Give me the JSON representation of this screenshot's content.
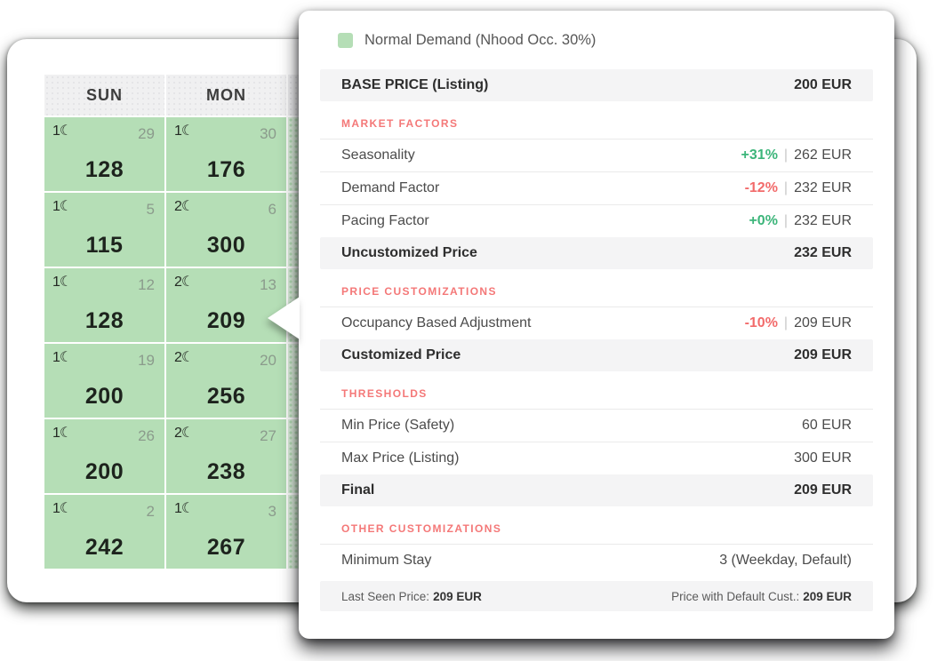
{
  "calendar": {
    "day_headers": [
      "SUN",
      "MON"
    ],
    "weeks": [
      {
        "cells": [
          {
            "min_stay_moons": "1",
            "day": "29",
            "price": "128"
          },
          {
            "min_stay_moons": "1",
            "day": "30",
            "price": "176"
          }
        ]
      },
      {
        "cells": [
          {
            "min_stay_moons": "1",
            "day": "5",
            "price": "115"
          },
          {
            "min_stay_moons": "2",
            "day": "6",
            "price": "300"
          }
        ]
      },
      {
        "cells": [
          {
            "min_stay_moons": "1",
            "day": "12",
            "price": "128"
          },
          {
            "min_stay_moons": "2",
            "day": "13",
            "price": "209"
          }
        ]
      },
      {
        "cells": [
          {
            "min_stay_moons": "1",
            "day": "19",
            "price": "200"
          },
          {
            "min_stay_moons": "2",
            "day": "20",
            "price": "256"
          }
        ]
      },
      {
        "cells": [
          {
            "min_stay_moons": "1",
            "day": "26",
            "price": "200"
          },
          {
            "min_stay_moons": "2",
            "day": "27",
            "price": "238"
          }
        ]
      },
      {
        "cells": [
          {
            "min_stay_moons": "1",
            "day": "2",
            "price": "242"
          },
          {
            "min_stay_moons": "1",
            "day": "3",
            "price": "267"
          }
        ]
      }
    ]
  },
  "popover": {
    "legend": {
      "label": "Normal Demand (Nhood Occ. 30%)",
      "swatch_color": "#b5deb6"
    },
    "sections": [
      {
        "type": "band",
        "label": "BASE PRICE (Listing)",
        "value": "200 EUR"
      },
      {
        "type": "header",
        "label": "MARKET FACTORS"
      },
      {
        "type": "row",
        "label": "Seasonality",
        "pct": "+31%",
        "pct_color": "green",
        "value": "262 EUR"
      },
      {
        "type": "row",
        "label": "Demand Factor",
        "pct": "-12%",
        "pct_color": "red",
        "value": "232 EUR"
      },
      {
        "type": "row",
        "label": "Pacing Factor",
        "pct": "+0%",
        "pct_color": "green",
        "value": "232 EUR"
      },
      {
        "type": "band",
        "label": "Uncustomized Price",
        "value": "232 EUR"
      },
      {
        "type": "header",
        "label": "PRICE CUSTOMIZATIONS"
      },
      {
        "type": "row",
        "label": "Occupancy Based Adjustment",
        "pct": "-10%",
        "pct_color": "red",
        "value": "209 EUR"
      },
      {
        "type": "band",
        "label": "Customized Price",
        "value": "209 EUR"
      },
      {
        "type": "header",
        "label": "THRESHOLDS"
      },
      {
        "type": "row",
        "label": "Min Price (Safety)",
        "value": "60 EUR"
      },
      {
        "type": "row",
        "label": "Max Price (Listing)",
        "value": "300 EUR"
      },
      {
        "type": "band",
        "label": "Final",
        "value": "209 EUR"
      },
      {
        "type": "header",
        "label": "OTHER CUSTOMIZATIONS"
      },
      {
        "type": "row",
        "label": "Minimum Stay",
        "value": "3 (Weekday, Default)"
      }
    ],
    "footer": {
      "left_label": "Last Seen Price:",
      "left_value": "209 EUR",
      "right_label": "Price with Default Cust.:",
      "right_value": "209 EUR"
    }
  },
  "icons": {
    "moon": "☾"
  },
  "colors": {
    "cell_green": "#b5deb6",
    "section_header_pink": "#f47878",
    "positive_green": "#3cb57a",
    "negative_red": "#f26b6b",
    "band_gray": "#f4f4f5"
  }
}
